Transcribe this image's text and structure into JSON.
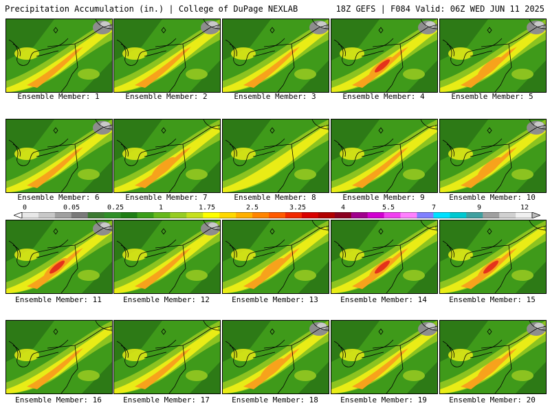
{
  "header": {
    "title": "Precipitation Accumulation (in.) | College of DuPage NEXLAB",
    "run_info": "18Z GEFS | F084 Valid: 06Z WED JUN 11 2025"
  },
  "panels": [
    {
      "label": "Ensemble Member: 1"
    },
    {
      "label": "Ensemble Member: 2"
    },
    {
      "label": "Ensemble Member: 3"
    },
    {
      "label": "Ensemble Member: 4"
    },
    {
      "label": "Ensemble Member: 5"
    },
    {
      "label": "Ensemble Member: 6"
    },
    {
      "label": "Ensemble Member: 7"
    },
    {
      "label": "Ensemble Member: 8"
    },
    {
      "label": "Ensemble Member: 9"
    },
    {
      "label": "Ensemble Member: 10"
    },
    {
      "label": "Ensemble Member: 11"
    },
    {
      "label": "Ensemble Member: 12"
    },
    {
      "label": "Ensemble Member: 13"
    },
    {
      "label": "Ensemble Member: 14"
    },
    {
      "label": "Ensemble Member: 15"
    },
    {
      "label": "Ensemble Member: 16"
    },
    {
      "label": "Ensemble Member: 17"
    },
    {
      "label": "Ensemble Member: 18"
    },
    {
      "label": "Ensemble Member: 19"
    },
    {
      "label": "Ensemble Member: 20"
    }
  ],
  "colorbar": {
    "tick_labels": [
      "0",
      "0.05",
      "0.25",
      "1",
      "1.75",
      "2.5",
      "3.25",
      "4",
      "5.5",
      "7",
      "9",
      "12"
    ],
    "colors": [
      "#e8e8e8",
      "#c8c8c8",
      "#a0a0a0",
      "#7a7a7a",
      "#3c7a32",
      "#2f8f28",
      "#1e7d14",
      "#3a9e18",
      "#66b81c",
      "#96cc22",
      "#c6e01e",
      "#ffff00",
      "#ffd800",
      "#ffb000",
      "#ff8400",
      "#ff5a00",
      "#f02800",
      "#d80000",
      "#b00000",
      "#8a0020",
      "#a0008c",
      "#d000d0",
      "#f040f0",
      "#ff80ff",
      "#8080ff",
      "#00e0ff",
      "#00c8d0",
      "#40a0a0",
      "#a0a0a0",
      "#d0d0d0",
      "#f0f0f0"
    ]
  },
  "map_palette": {
    "dark_green": "#2d7a16",
    "green": "#3f9a1a",
    "lime": "#8cc320",
    "yellow": "#e9ec16",
    "orange": "#f7a21c",
    "red": "#e4321b",
    "gray": "#8d8d8d",
    "light_gray": "#c9c9c9"
  }
}
